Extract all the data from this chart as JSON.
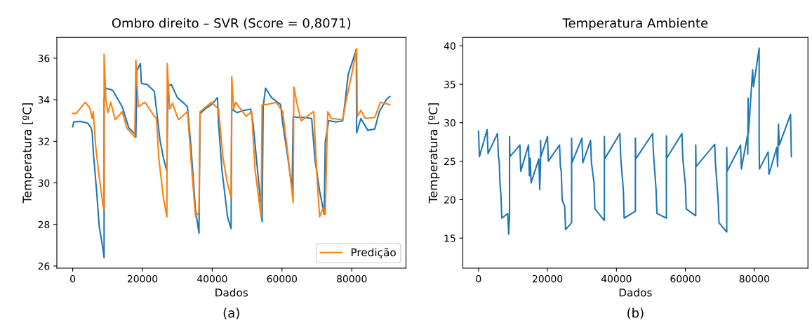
{
  "chart_data": [
    {
      "type": "line",
      "title": "Ombro direito – SVR (Score = 0,8071)",
      "xlabel": "Dados",
      "ylabel": "Temperatura [ºC]",
      "annotations": [
        "(a)"
      ],
      "xlim": [
        -4550,
        95550
      ],
      "ylim": [
        25.9,
        37.0
      ],
      "xticks": [
        0,
        20000,
        40000,
        60000,
        80000
      ],
      "yticks": [
        26,
        28,
        30,
        32,
        34,
        36
      ],
      "grid": false,
      "legend": "bottom right",
      "series": [
        {
          "color": "#1f77b4",
          "x": [
            0,
            300,
            2300,
            4300,
            5300,
            5600,
            5900,
            6900,
            7600,
            8600,
            9000,
            9000,
            9500,
            11500,
            14200,
            16100,
            17800,
            18100,
            18400,
            19400,
            19700,
            21400,
            23400,
            24000,
            25000,
            26000,
            27000,
            27300,
            28300,
            30000,
            31900,
            32900,
            33900,
            35200,
            36200,
            36500,
            37900,
            39800,
            41500,
            41800,
            42800,
            44400,
            45400,
            45600,
            47100,
            49000,
            51000,
            51700,
            53000,
            54000,
            54300,
            54600,
            55300,
            57000,
            59600,
            60200,
            61600,
            62900,
            63200,
            64200,
            66200,
            68500,
            69500,
            70800,
            72100,
            72400,
            73400,
            75400,
            77400,
            78000,
            79000,
            80300,
            81300,
            81400,
            82600,
            84600,
            86600,
            87900,
            89900,
            90900
          ],
          "values": [
            32.7,
            32.93,
            32.96,
            32.87,
            32.64,
            32.4,
            31.5,
            29.5,
            27.9,
            26.9,
            26.4,
            34.0,
            34.56,
            34.45,
            33.66,
            32.64,
            32.36,
            32.2,
            35.4,
            35.74,
            34.78,
            34.73,
            34.4,
            33.55,
            32.08,
            31.2,
            30.56,
            34.67,
            34.73,
            34.1,
            33.83,
            33.66,
            31.74,
            28.7,
            27.58,
            33.32,
            33.55,
            33.77,
            34.1,
            32.87,
            30.6,
            28.36,
            27.8,
            33.55,
            33.38,
            33.49,
            33.55,
            32.87,
            30.6,
            28.8,
            28.14,
            33.66,
            34.56,
            34.1,
            33.77,
            32.87,
            31.3,
            29.7,
            33.2,
            33.15,
            33.15,
            33.1,
            31.07,
            29.6,
            28.48,
            31.97,
            33.0,
            32.93,
            32.98,
            33.77,
            35.23,
            35.9,
            36.42,
            32.4,
            33.1,
            32.53,
            32.59,
            33.43,
            34.0,
            34.16
          ]
        },
        {
          "name": "Predição",
          "color": "#ff7f0e",
          "x": [
            0,
            1000,
            3600,
            4900,
            5600,
            5900,
            6600,
            7600,
            8800,
            9000,
            9000,
            9500,
            10100,
            10900,
            12200,
            14200,
            15500,
            17800,
            18100,
            18800,
            20700,
            23400,
            24000,
            24700,
            26000,
            27000,
            27100,
            27800,
            28600,
            30300,
            32900,
            33900,
            35200,
            36200,
            36500,
            39800,
            41800,
            43100,
            44400,
            45400,
            45600,
            46100,
            46700,
            49700,
            51300,
            52300,
            54000,
            54300,
            55600,
            58300,
            60200,
            61600,
            63200,
            63400,
            64200,
            65500,
            68100,
            69100,
            70100,
            70800,
            71800,
            72400,
            73100,
            74100,
            77400,
            78300,
            80000,
            81400,
            81600,
            82600,
            83900,
            86600,
            88200,
            90900
          ],
          "values": [
            33.34,
            33.34,
            33.88,
            33.6,
            33.1,
            33.43,
            31.74,
            30.28,
            28.8,
            28.7,
            36.19,
            34.0,
            33.38,
            33.88,
            33.04,
            33.43,
            32.64,
            32.2,
            35.9,
            33.66,
            33.88,
            33.2,
            33.1,
            31.18,
            29.27,
            28.37,
            35.74,
            33.55,
            33.83,
            33.04,
            33.43,
            31.18,
            28.37,
            28.6,
            33.43,
            33.88,
            33.55,
            31.18,
            29.94,
            29.32,
            35.12,
            33.55,
            33.88,
            33.2,
            33.43,
            30.6,
            28.37,
            33.77,
            33.77,
            33.88,
            33.43,
            31.52,
            29.04,
            34.61,
            33.88,
            32.98,
            33.32,
            33.43,
            30.06,
            28.37,
            28.8,
            28.48,
            33.43,
            33.1,
            33.04,
            33.88,
            35.23,
            36.47,
            33.2,
            33.49,
            33.1,
            33.15,
            33.88,
            33.77
          ]
        }
      ]
    },
    {
      "type": "line",
      "title": "Temperatura Ambiente",
      "xlabel": "Dados",
      "ylabel": "Temperatura [ºC]",
      "annotations": [
        "(b)"
      ],
      "xlim": [
        -4550,
        95550
      ],
      "ylim": [
        11.1,
        41.1
      ],
      "xticks": [
        0,
        20000,
        40000,
        60000,
        80000
      ],
      "yticks": [
        15,
        20,
        25,
        30,
        35,
        40
      ],
      "grid": false,
      "series": [
        {
          "color": "#1f77b4",
          "x": [
            0,
            250,
            2500,
            2750,
            5500,
            5750,
            6000,
            6250,
            6500,
            6750,
            8500,
            8750,
            9000,
            9000,
            9100,
            12000,
            12250,
            14500,
            14750,
            15000,
            15250,
            17500,
            17750,
            18000,
            18000,
            18100,
            20000,
            20250,
            23500,
            23750,
            24000,
            24250,
            25000,
            25250,
            27000,
            27000,
            27100,
            30000,
            30250,
            32500,
            32750,
            33500,
            33750,
            36500,
            36500,
            36600,
            41000,
            41250,
            42000,
            42250,
            45500,
            45500,
            45600,
            50500,
            50750,
            51500,
            51750,
            54500,
            54500,
            54600,
            59000,
            59250,
            60000,
            60250,
            63000,
            63000,
            63100,
            68500,
            68750,
            69500,
            69750,
            72000,
            72000,
            72100,
            76000,
            76250,
            78000,
            78100,
            78200,
            78300,
            79500,
            79750,
            81400,
            81400,
            81500,
            84000,
            84250,
            86500,
            86750,
            87000,
            87250,
            90500,
            90750
          ],
          "values": [
            28.9,
            25.6,
            29.1,
            26.0,
            28.6,
            25.7,
            25.0,
            21.9,
            20.7,
            17.6,
            18.2,
            15.5,
            18.0,
            28.2,
            25.6,
            27.1,
            23.7,
            27.1,
            23.1,
            25.4,
            22.2,
            25.3,
            21.3,
            24.8,
            27.7,
            25.6,
            28.2,
            25.0,
            27.1,
            24.3,
            23.7,
            20.0,
            19.1,
            16.1,
            17.0,
            28.0,
            24.8,
            28.0,
            24.8,
            27.7,
            24.8,
            22.2,
            18.8,
            17.3,
            28.2,
            25.3,
            28.6,
            25.4,
            21.3,
            17.6,
            18.5,
            28.0,
            25.3,
            28.6,
            26.0,
            21.3,
            18.2,
            17.6,
            28.3,
            25.4,
            28.6,
            25.4,
            21.9,
            18.8,
            17.9,
            27.1,
            24.3,
            27.2,
            24.5,
            20.0,
            17.0,
            15.8,
            26.8,
            23.7,
            27.1,
            24.0,
            28.3,
            25.9,
            33.2,
            28.6,
            36.9,
            34.7,
            39.7,
            27.1,
            24.0,
            26.2,
            23.3,
            26.8,
            24.3,
            29.8,
            27.1,
            31.1,
            25.6
          ]
        }
      ]
    }
  ]
}
